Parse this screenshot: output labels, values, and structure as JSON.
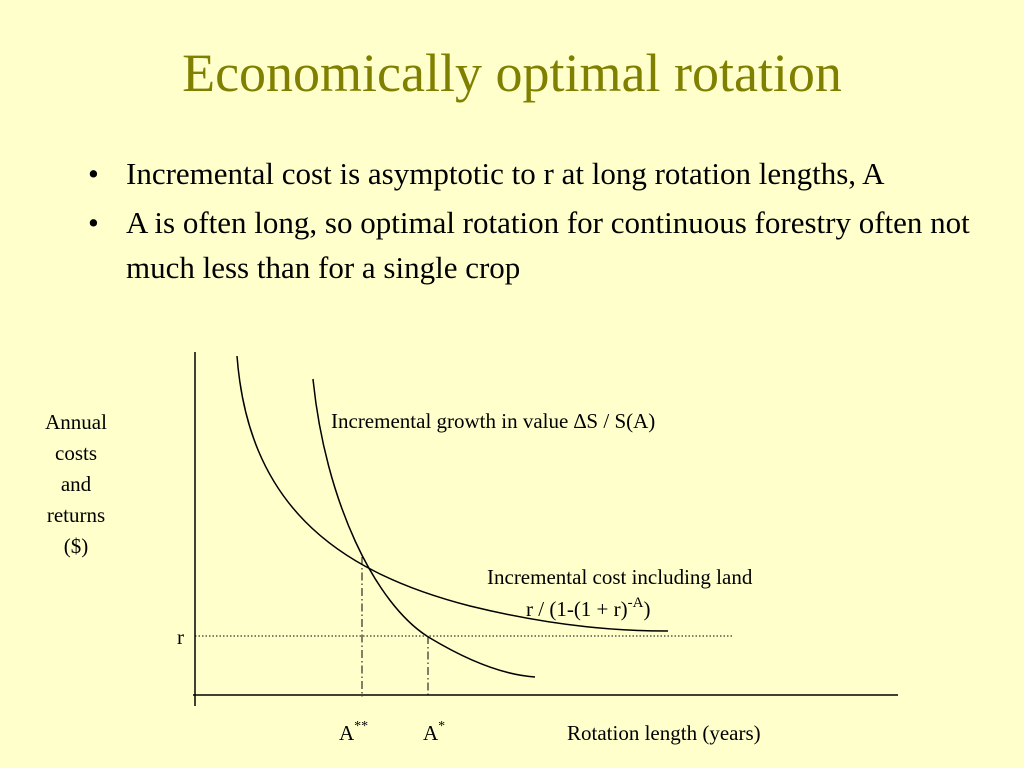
{
  "slide": {
    "title": "Economically optimal rotation",
    "bullets": [
      "Incremental cost is asymptotic to r at long rotation lengths, A",
      "A is often long, so optimal rotation for continuous forestry often not much less than for a single crop"
    ]
  },
  "diagram": {
    "y_axis_label": [
      "Annual",
      "costs",
      "and",
      "returns",
      "($)"
    ],
    "x_axis_label": "Rotation length (years)",
    "r_label": "r",
    "growth_curve_label": "Incremental growth in value ∆S / S(A)",
    "cost_curve_label": "Incremental cost including land",
    "cost_formula": {
      "main": "r / (1-(1 + r)",
      "sup": "-A",
      "close": ")"
    },
    "a_double_star": {
      "base": "A",
      "sup": "**"
    },
    "a_star": {
      "base": "A",
      "sup": "*"
    }
  }
}
